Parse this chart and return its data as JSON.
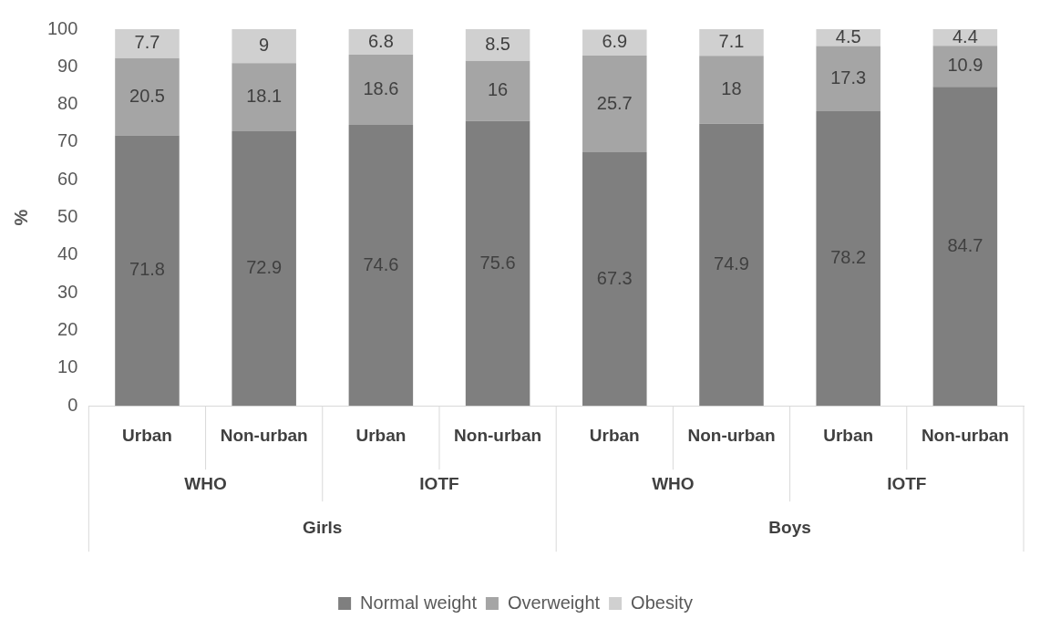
{
  "chart_data": {
    "type": "bar",
    "stacked": true,
    "ylabel": "%",
    "categories": [
      "Urban",
      "Non-urban",
      "Urban",
      "Non-urban",
      "Urban",
      "Non-urban",
      "Urban",
      "Non-urban"
    ],
    "series": [
      {
        "name": "Normal weight",
        "color": "#7f7f7f",
        "values": [
          71.8,
          72.9,
          74.6,
          75.6,
          67.3,
          74.9,
          78.2,
          84.7
        ]
      },
      {
        "name": "Overweight",
        "color": "#a5a5a5",
        "values": [
          20.5,
          18.1,
          18.6,
          16,
          25.7,
          18,
          17.3,
          10.9
        ]
      },
      {
        "name": "Obesity",
        "color": "#d0d0d0",
        "values": [
          7.7,
          9,
          6.8,
          8.5,
          6.9,
          7.1,
          4.5,
          4.4
        ]
      }
    ],
    "ylim": [
      0,
      100
    ],
    "yticks": [
      0,
      10,
      20,
      30,
      40,
      50,
      60,
      70,
      80,
      90,
      100
    ],
    "grid": false,
    "legend": "bottom",
    "data_labels": true,
    "annotations": [
      "WHO",
      "IOTF",
      "WHO",
      "IOTF",
      "Girls",
      "Boys"
    ]
  }
}
